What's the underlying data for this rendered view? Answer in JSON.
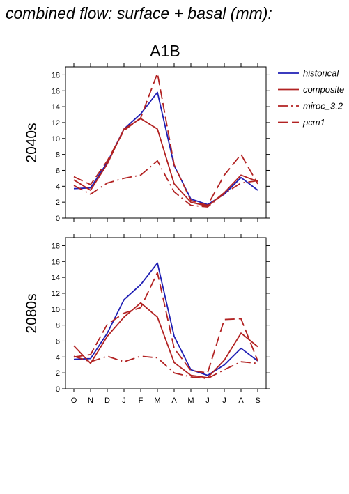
{
  "figure": {
    "title": "combined flow: surface + basal (mm):",
    "scenario": "A1B"
  },
  "legend": {
    "placement": "right",
    "entries": [
      {
        "name": "historical",
        "color": "#1f1fb4",
        "dash": "solid"
      },
      {
        "name": "composite",
        "color": "#b22222",
        "dash": "solid"
      },
      {
        "name": "miroc_3.2",
        "color": "#b22222",
        "dash": "dashdot"
      },
      {
        "name": "pcm1",
        "color": "#b22222",
        "dash": "dashed"
      }
    ]
  },
  "chart_data": [
    {
      "type": "line",
      "panel_label": "2040s",
      "title": "A1B",
      "categories": [
        "O",
        "N",
        "D",
        "J",
        "F",
        "M",
        "A",
        "M",
        "J",
        "J",
        "A",
        "S"
      ],
      "ylim": [
        0,
        19
      ],
      "yticks": [
        0,
        2,
        4,
        6,
        8,
        10,
        12,
        14,
        16,
        18
      ],
      "grid": false,
      "series": [
        {
          "name": "historical",
          "values": [
            3.7,
            3.8,
            7.0,
            11.2,
            13.1,
            15.8,
            6.6,
            2.4,
            1.7,
            3.0,
            5.1,
            3.5
          ]
        },
        {
          "name": "composite",
          "values": [
            4.8,
            3.5,
            6.8,
            11.2,
            12.5,
            11.2,
            4.3,
            2.0,
            1.5,
            3.2,
            5.4,
            4.6
          ]
        },
        {
          "name": "miroc_3.2",
          "values": [
            4.1,
            3.0,
            4.4,
            5.0,
            5.4,
            7.2,
            3.3,
            1.6,
            1.4,
            3.1,
            4.4,
            4.7
          ]
        },
        {
          "name": "pcm1",
          "values": [
            5.2,
            4.2,
            7.2,
            11.0,
            12.6,
            18.2,
            6.7,
            2.2,
            1.6,
            5.4,
            8.0,
            4.3
          ]
        }
      ]
    },
    {
      "type": "line",
      "panel_label": "2080s",
      "categories": [
        "O",
        "N",
        "D",
        "J",
        "F",
        "M",
        "A",
        "M",
        "J",
        "J",
        "A",
        "S"
      ],
      "ylim": [
        0,
        19
      ],
      "yticks": [
        0,
        2,
        4,
        6,
        8,
        10,
        12,
        14,
        16,
        18
      ],
      "grid": false,
      "series": [
        {
          "name": "historical",
          "values": [
            3.7,
            3.8,
            7.0,
            11.2,
            13.1,
            15.8,
            6.6,
            2.4,
            1.7,
            3.0,
            5.1,
            3.5
          ]
        },
        {
          "name": "composite",
          "values": [
            5.4,
            3.2,
            6.6,
            9.0,
            10.8,
            9.0,
            3.3,
            1.7,
            1.4,
            3.6,
            7.0,
            5.3
          ]
        },
        {
          "name": "miroc_3.2",
          "values": [
            4.1,
            3.4,
            4.1,
            3.4,
            4.1,
            3.9,
            2.0,
            1.5,
            1.3,
            2.4,
            3.4,
            3.2
          ]
        },
        {
          "name": "pcm1",
          "values": [
            4.0,
            4.3,
            8.1,
            9.5,
            10.2,
            14.6,
            5.1,
            2.3,
            2.0,
            8.7,
            8.8,
            3.5
          ]
        }
      ]
    }
  ]
}
